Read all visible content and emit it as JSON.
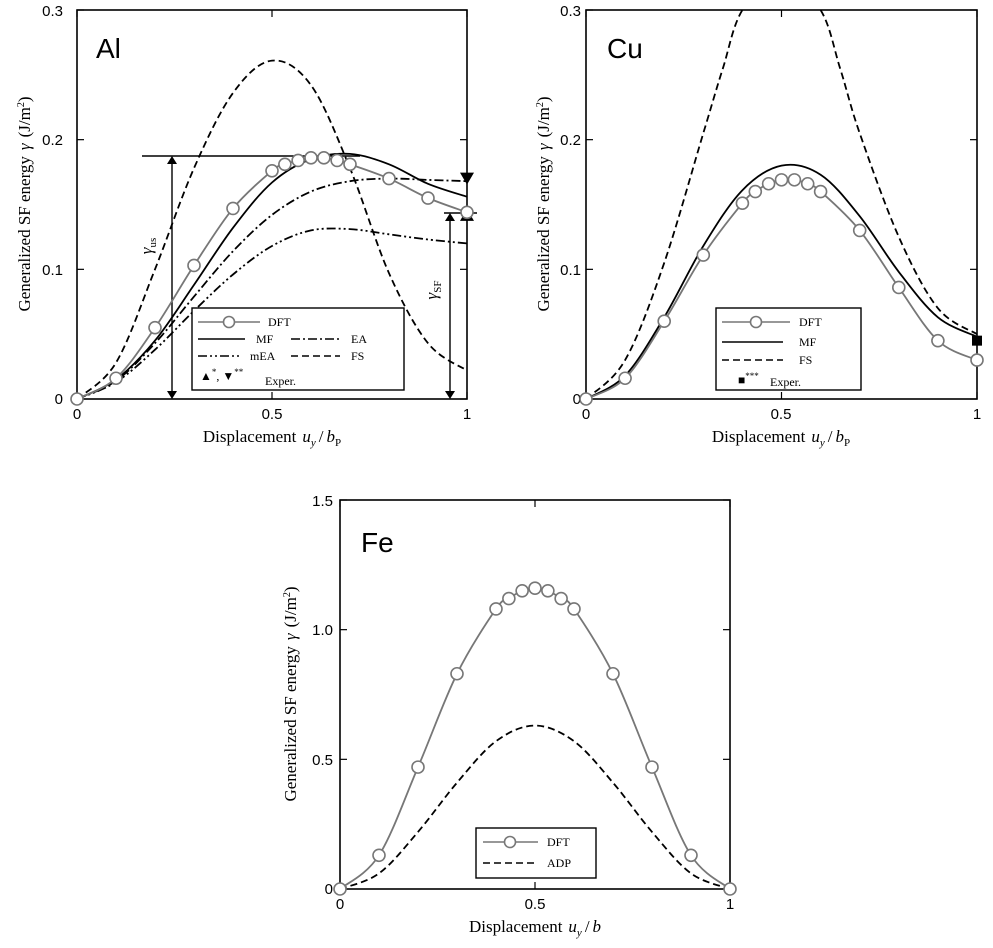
{
  "chart_data": [
    {
      "type": "line",
      "panel_label": "Al",
      "xlabel": "Displacement",
      "xlabel_var": "u",
      "xlabel_sub": "y",
      "xlabel_den": "b",
      "xlabel_den_sub": "P",
      "ylabel": "Generalized SF energy",
      "ylabel_sym": "γ",
      "ylabel_unit": "(J/m",
      "ylabel_unit_sup": "2",
      "ylabel_unit_end": ")",
      "xlim": [
        0,
        1
      ],
      "ylim": [
        0,
        0.3
      ],
      "xticks": [
        0,
        0.5,
        1
      ],
      "xtick_labels": [
        "0",
        "0.5",
        "1"
      ],
      "yticks": [
        0,
        0.1,
        0.2,
        0.3
      ],
      "ytick_labels": [
        "0",
        "0.1",
        "0.2",
        "0.3"
      ],
      "legend_placement": "bottom-center",
      "legend_entries": [
        "DFT",
        "MF",
        "EA",
        "mEA",
        "FS",
        "Exper."
      ],
      "exper_marks": [
        {
          "symbol": "▲",
          "sup": "*"
        },
        {
          "symbol": "▼",
          "sup": "**"
        }
      ],
      "annotations": [
        {
          "sym": "γ",
          "sub": "us",
          "value": 0.187
        },
        {
          "sym": "γ",
          "sub": "SF",
          "value": 0.144
        }
      ],
      "series": [
        {
          "name": "DFT",
          "style": "solid-markers",
          "x": [
            0,
            0.1,
            0.2,
            0.3,
            0.4,
            0.5,
            0.533,
            0.567,
            0.6,
            0.633,
            0.667,
            0.7,
            0.8,
            0.9,
            1.0
          ],
          "y": [
            0,
            0.016,
            0.055,
            0.103,
            0.147,
            0.176,
            0.181,
            0.184,
            0.186,
            0.186,
            0.184,
            0.181,
            0.17,
            0.155,
            0.144
          ]
        },
        {
          "name": "MF",
          "style": "solid",
          "x": [
            0,
            0.1,
            0.2,
            0.3,
            0.4,
            0.5,
            0.6,
            0.7,
            0.8,
            0.9,
            1.0
          ],
          "y": [
            0,
            0.015,
            0.045,
            0.088,
            0.132,
            0.167,
            0.185,
            0.189,
            0.181,
            0.166,
            0.156
          ]
        },
        {
          "name": "EA",
          "style": "dashdot",
          "x": [
            0,
            0.1,
            0.2,
            0.3,
            0.4,
            0.5,
            0.6,
            0.7,
            0.8,
            0.9,
            1.0
          ],
          "y": [
            0,
            0.014,
            0.043,
            0.079,
            0.114,
            0.142,
            0.16,
            0.168,
            0.17,
            0.169,
            0.168
          ]
        },
        {
          "name": "mEA",
          "style": "dashdotdot",
          "x": [
            0,
            0.1,
            0.2,
            0.3,
            0.4,
            0.5,
            0.6,
            0.7,
            0.8,
            0.9,
            1.0
          ],
          "y": [
            0,
            0.013,
            0.038,
            0.068,
            0.096,
            0.118,
            0.13,
            0.131,
            0.127,
            0.123,
            0.12
          ]
        },
        {
          "name": "FS",
          "style": "dashed",
          "x": [
            0,
            0.1,
            0.2,
            0.3,
            0.4,
            0.5,
            0.6,
            0.7,
            0.8,
            0.9,
            1.0
          ],
          "y": [
            0,
            0.028,
            0.1,
            0.178,
            0.236,
            0.261,
            0.242,
            0.178,
            0.097,
            0.043,
            0.022
          ]
        },
        {
          "name": "Exper. ▲",
          "style": "marker-up",
          "x": [
            1.0
          ],
          "y": [
            0.142
          ]
        },
        {
          "name": "Exper. ▼",
          "style": "marker-down",
          "x": [
            1.0
          ],
          "y": [
            0.17
          ]
        }
      ]
    },
    {
      "type": "line",
      "panel_label": "Cu",
      "xlabel": "Displacement",
      "xlabel_var": "u",
      "xlabel_sub": "y",
      "xlabel_den": "b",
      "xlabel_den_sub": "P",
      "ylabel": "Generalized SF energy",
      "ylabel_sym": "γ",
      "ylabel_unit": "(J/m",
      "ylabel_unit_sup": "2",
      "ylabel_unit_end": ")",
      "xlim": [
        0,
        1
      ],
      "ylim": [
        0,
        0.3
      ],
      "xticks": [
        0,
        0.5,
        1
      ],
      "xtick_labels": [
        "0",
        "0.5",
        "1"
      ],
      "yticks": [
        0,
        0.1,
        0.2,
        0.3
      ],
      "ytick_labels": [
        "0",
        "0.1",
        "0.2",
        "0.3"
      ],
      "legend_placement": "bottom-center",
      "legend_entries": [
        "DFT",
        "MF",
        "FS",
        "Exper."
      ],
      "exper_marks": [
        {
          "symbol": "■",
          "sup": "***"
        }
      ],
      "series": [
        {
          "name": "DFT",
          "style": "solid-markers",
          "x": [
            0,
            0.1,
            0.2,
            0.3,
            0.4,
            0.433,
            0.467,
            0.5,
            0.533,
            0.567,
            0.6,
            0.7,
            0.8,
            0.9,
            1.0
          ],
          "y": [
            0,
            0.016,
            0.06,
            0.111,
            0.151,
            0.16,
            0.166,
            0.169,
            0.169,
            0.166,
            0.16,
            0.13,
            0.086,
            0.045,
            0.03
          ]
        },
        {
          "name": "MF",
          "style": "solid",
          "x": [
            0,
            0.1,
            0.2,
            0.3,
            0.4,
            0.5,
            0.6,
            0.7,
            0.8,
            0.9,
            1.0
          ],
          "y": [
            0,
            0.018,
            0.063,
            0.118,
            0.161,
            0.18,
            0.173,
            0.141,
            0.098,
            0.063,
            0.048
          ]
        },
        {
          "name": "FS",
          "style": "dashed",
          "x": [
            0,
            0.1,
            0.2,
            0.3,
            0.35,
            0.4,
            0.5,
            0.6,
            0.65,
            0.7,
            0.8,
            0.9,
            1.0
          ],
          "y": [
            0,
            0.03,
            0.105,
            0.205,
            0.255,
            0.3,
            0.33,
            0.3,
            0.255,
            0.205,
            0.125,
            0.07,
            0.05
          ]
        },
        {
          "name": "Exper. ■",
          "style": "marker-square",
          "x": [
            1.0
          ],
          "y": [
            0.045
          ]
        }
      ]
    },
    {
      "type": "line",
      "panel_label": "Fe",
      "xlabel": "Displacement",
      "xlabel_var": "u",
      "xlabel_sub": "y",
      "xlabel_den": "b",
      "xlabel_den_sub": "",
      "ylabel": "Generalized SF energy",
      "ylabel_sym": "γ",
      "ylabel_unit": "(J/m",
      "ylabel_unit_sup": "2",
      "ylabel_unit_end": ")",
      "xlim": [
        0,
        1
      ],
      "ylim": [
        0,
        1.5
      ],
      "xticks": [
        0,
        0.5,
        1
      ],
      "xtick_labels": [
        "0",
        "0.5",
        "1"
      ],
      "yticks": [
        0,
        0.5,
        1.0,
        1.5
      ],
      "ytick_labels": [
        "0",
        "0.5",
        "1.0",
        "1.5"
      ],
      "legend_placement": "bottom-center",
      "legend_entries": [
        "DFT",
        "ADP"
      ],
      "series": [
        {
          "name": "DFT",
          "style": "solid-markers",
          "x": [
            0,
            0.1,
            0.2,
            0.3,
            0.4,
            0.433,
            0.467,
            0.5,
            0.533,
            0.567,
            0.6,
            0.7,
            0.8,
            0.9,
            1.0
          ],
          "y": [
            0,
            0.13,
            0.47,
            0.83,
            1.08,
            1.12,
            1.15,
            1.16,
            1.15,
            1.12,
            1.08,
            0.83,
            0.47,
            0.13,
            0
          ]
        },
        {
          "name": "ADP",
          "style": "dashed",
          "x": [
            0,
            0.1,
            0.2,
            0.3,
            0.4,
            0.5,
            0.6,
            0.7,
            0.8,
            0.9,
            1.0
          ],
          "y": [
            0,
            0.06,
            0.22,
            0.41,
            0.57,
            0.63,
            0.57,
            0.41,
            0.22,
            0.06,
            0
          ]
        }
      ]
    }
  ]
}
